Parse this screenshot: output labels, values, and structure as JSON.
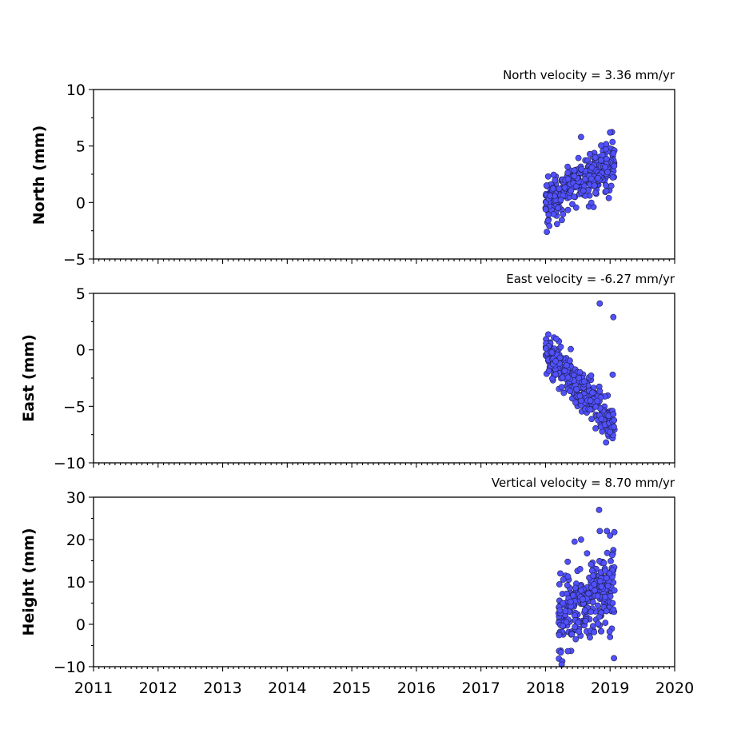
{
  "chart_data": [
    {
      "type": "scatter",
      "title": "North velocity = 3.36 mm/yr",
      "xlabel": "",
      "ylabel": "North (mm)",
      "xlim": [
        2011,
        2020
      ],
      "ylim": [
        -5,
        10
      ],
      "yticks": [
        -5,
        0,
        5,
        10
      ],
      "ytick_labels": [
        "−5",
        "0",
        "5",
        "10"
      ],
      "grid": false,
      "point_color": "#5050ff",
      "edge_color": "#1f1f4a",
      "velocity_mm_per_yr": 3.36,
      "trend": {
        "t0": 2018.0,
        "start_mm": 0.0
      },
      "time_range": [
        2018.0,
        2019.07
      ],
      "n_points": 320,
      "scatter_sd_mm": 1.0,
      "outliers": [
        {
          "x": 2018.55,
          "y": 5.8
        },
        {
          "x": 2019.0,
          "y": 6.2
        },
        {
          "x": 2018.02,
          "y": -2.6
        },
        {
          "x": 2018.04,
          "y": 2.3
        },
        {
          "x": 2018.98,
          "y": 0.4
        }
      ]
    },
    {
      "type": "scatter",
      "title": "East velocity = -6.27 mm/yr",
      "xlabel": "",
      "ylabel": "East (mm)",
      "xlim": [
        2011,
        2020
      ],
      "ylim": [
        -10,
        5
      ],
      "yticks": [
        -10,
        -5,
        0,
        5
      ],
      "ytick_labels": [
        "−10",
        "−5",
        "0",
        "5"
      ],
      "grid": false,
      "point_color": "#5050ff",
      "edge_color": "#1f1f4a",
      "velocity_mm_per_yr": -6.27,
      "trend": {
        "t0": 2018.0,
        "start_mm": 0.0
      },
      "time_range": [
        2018.0,
        2019.07
      ],
      "n_points": 320,
      "scatter_sd_mm": 0.9,
      "outliers": [
        {
          "x": 2018.84,
          "y": 4.1
        },
        {
          "x": 2019.05,
          "y": -5.7
        },
        {
          "x": 2019.04,
          "y": -2.2
        },
        {
          "x": 2018.6,
          "y": -2.8
        },
        {
          "x": 2019.05,
          "y": 2.9
        }
      ]
    },
    {
      "type": "scatter",
      "title": "Vertical velocity = 8.70 mm/yr",
      "xlabel": "",
      "ylabel": "Height (mm)",
      "xlim": [
        2011,
        2020
      ],
      "ylim": [
        -10,
        30
      ],
      "yticks": [
        -10,
        0,
        10,
        20,
        30
      ],
      "ytick_labels": [
        "−10",
        "0",
        "10",
        "20",
        "30"
      ],
      "grid": false,
      "point_color": "#5050ff",
      "edge_color": "#1f1f4a",
      "velocity_mm_per_yr": 8.7,
      "trend": {
        "t0": 2018.0,
        "start_mm": 0.0
      },
      "time_range": [
        2018.2,
        2019.07
      ],
      "n_points": 300,
      "scatter_sd_mm": 4.5,
      "outliers": [
        {
          "x": 2018.83,
          "y": 27.0
        },
        {
          "x": 2018.84,
          "y": 22.0
        },
        {
          "x": 2018.95,
          "y": 22.0
        },
        {
          "x": 2018.55,
          "y": 20.0
        },
        {
          "x": 2018.45,
          "y": 19.5
        },
        {
          "x": 2019.06,
          "y": -8.0
        },
        {
          "x": 2018.25,
          "y": -9.5
        },
        {
          "x": 2018.23,
          "y": 12.0
        },
        {
          "x": 2019.0,
          "y": -3.0
        }
      ]
    }
  ],
  "x_axis": {
    "ticks": [
      2011,
      2012,
      2013,
      2014,
      2015,
      2016,
      2017,
      2018,
      2019,
      2020
    ],
    "tick_labels": [
      "2011",
      "2012",
      "2013",
      "2014",
      "2015",
      "2016",
      "2017",
      "2018",
      "2019",
      "2020"
    ],
    "minor_per_year": 12
  }
}
